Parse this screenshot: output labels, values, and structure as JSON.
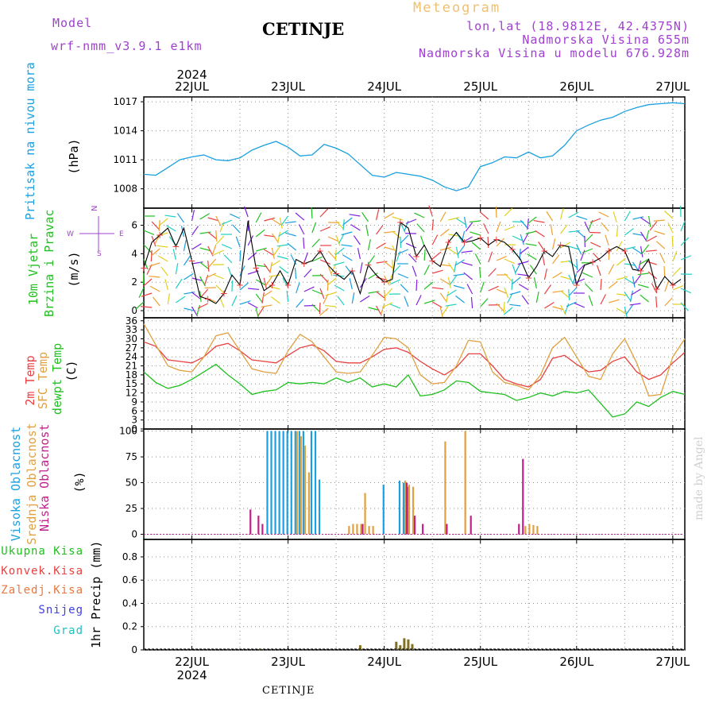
{
  "header": {
    "model_label": "Model",
    "model_value": "wrf-nmm_v3.9.1  e1km",
    "station": "CETINJE",
    "product": "Meteogram",
    "lonlat": "lon,lat (18.9812E, 42.4375N)",
    "altitude": "Nadmorska Visina 655m",
    "model_altitude": "Nadmorska Visina u modelu 676.928m"
  },
  "footer": {
    "station": "CETINJE"
  },
  "credit": "made by Angel",
  "colors": {
    "pressure": "#1aa0e0",
    "temp2m": "#e84040",
    "sfc": "#e0a040",
    "dewpt": "#20c020",
    "high_cloud": "#1aa0e0",
    "mid_cloud": "#e0a040",
    "low_cloud": "#c0208a",
    "wind_label": "#20c020",
    "purple": "#a040d0",
    "grid": "#909090"
  },
  "chart_data": [
    {
      "type": "line",
      "panel": "pressure",
      "ylabel_title": "Pritisak na nivou mora",
      "ylabel_unit": "(hPa)",
      "ylim": [
        1006,
        1017.5
      ],
      "yticks": [
        1008,
        1011,
        1014,
        1017
      ],
      "x_ticks": [
        "22JUL",
        "23JUL",
        "24JUL",
        "25JUL",
        "26JUL",
        "27JUL"
      ],
      "x_top_year": "2024",
      "xlim": [
        0,
        135
      ],
      "grid": true,
      "series": [
        {
          "color_key": "pressure",
          "x": [
            0,
            3,
            6,
            9,
            12,
            15,
            18,
            21,
            24,
            27,
            30,
            33,
            36,
            39,
            42,
            45,
            48,
            51,
            54,
            57,
            60,
            63,
            66,
            69,
            72,
            75,
            78,
            81,
            84,
            87,
            90,
            93,
            96,
            99,
            102,
            105,
            108,
            111,
            114,
            117,
            120,
            123,
            126,
            129,
            132,
            135
          ],
          "y": [
            1009.5,
            1009.4,
            1010.2,
            1011.0,
            1011.3,
            1011.5,
            1011.0,
            1010.9,
            1011.2,
            1012.0,
            1012.5,
            1012.9,
            1012.3,
            1011.4,
            1011.5,
            1012.6,
            1012.2,
            1011.6,
            1010.5,
            1009.4,
            1009.2,
            1009.7,
            1009.5,
            1009.3,
            1008.9,
            1008.2,
            1007.8,
            1008.2,
            1010.3,
            1010.7,
            1011.3,
            1011.2,
            1011.8,
            1011.2,
            1011.4,
            1012.5,
            1014.0,
            1014.6,
            1015.1,
            1015.4,
            1016.0,
            1016.4,
            1016.7,
            1016.8,
            1016.9,
            1016.8
          ]
        }
      ]
    },
    {
      "type": "line",
      "panel": "wind",
      "ylabel_title": "10m Vjetar",
      "ylabel_title2": "Brzina i Pravac",
      "ylabel_unit": "(m/s)",
      "compass": "N",
      "compass_w": "W",
      "compass_e": "E",
      "compass_s": "S",
      "ylim": [
        -0.5,
        7.2
      ],
      "yticks": [
        0,
        2,
        4,
        6
      ],
      "xlim": [
        0,
        135
      ],
      "grid": true,
      "series": [
        {
          "name": "speed",
          "x": [
            0,
            2,
            4,
            6,
            8,
            10,
            12,
            14,
            16,
            18,
            20,
            22,
            24,
            26,
            28,
            30,
            32,
            34,
            36,
            38,
            40,
            42,
            44,
            46,
            48,
            50,
            52,
            54,
            56,
            58,
            60,
            62,
            64,
            66,
            68,
            70,
            72,
            74,
            76,
            78,
            80,
            82,
            84,
            86,
            88,
            90,
            92,
            94,
            96,
            98,
            100,
            102,
            104,
            106,
            108,
            110,
            112,
            114,
            116,
            118,
            120,
            122,
            124,
            126,
            128,
            130,
            132,
            134
          ],
          "y": [
            3.0,
            4.8,
            5.3,
            5.8,
            4.5,
            5.8,
            3.5,
            1.0,
            0.8,
            0.5,
            1.2,
            2.5,
            1.8,
            6.3,
            3.0,
            1.4,
            1.8,
            2.8,
            1.8,
            3.6,
            3.3,
            3.5,
            4.2,
            3.2,
            2.6,
            2.2,
            2.8,
            1.2,
            3.2,
            2.5,
            2.0,
            2.2,
            6.2,
            5.8,
            3.8,
            4.6,
            3.5,
            3.1,
            4.8,
            5.5,
            4.8,
            4.9,
            5.1,
            4.6,
            5.0,
            4.8,
            4.3,
            3.6,
            2.3,
            3.1,
            4.2,
            3.8,
            4.6,
            4.5,
            1.8,
            3.2,
            3.4,
            3.7,
            4.2,
            4.5,
            4.2,
            2.9,
            2.8,
            3.6,
            1.5,
            2.4,
            1.8,
            2.2
          ]
        }
      ]
    },
    {
      "type": "line",
      "panel": "temperature",
      "ylabel_title_a": "2m Temp",
      "ylabel_title_b": "SFC Temp",
      "ylabel_title_c": "dewpt Temp",
      "ylabel_unit": "(C)",
      "ylim": [
        0,
        37
      ],
      "yticks": [
        0,
        3,
        6,
        9,
        12,
        15,
        18,
        21,
        24,
        27,
        30,
        33,
        36
      ],
      "xlim": [
        0,
        135
      ],
      "grid": true,
      "series": [
        {
          "color_key": "temp2m",
          "x": [
            0,
            3,
            6,
            9,
            12,
            15,
            18,
            21,
            24,
            27,
            30,
            33,
            36,
            39,
            42,
            45,
            48,
            51,
            54,
            57,
            60,
            63,
            66,
            69,
            72,
            75,
            78,
            81,
            84,
            87,
            90,
            93,
            96,
            99,
            102,
            105,
            108,
            111,
            114,
            117,
            120,
            123,
            126,
            129,
            132,
            135
          ],
          "y": [
            29.0,
            27.5,
            23.0,
            22.5,
            22.0,
            24.0,
            27.5,
            28.5,
            26.0,
            23.0,
            22.5,
            22.0,
            24.5,
            27.0,
            28.0,
            26.0,
            22.5,
            22.0,
            22.0,
            24.0,
            26.5,
            27.0,
            25.5,
            22.5,
            20.0,
            18.0,
            20.5,
            25.0,
            25.0,
            21.0,
            16.5,
            15.0,
            14.0,
            16.5,
            23.5,
            24.5,
            21.5,
            19.0,
            19.5,
            22.5,
            24.0,
            19.0,
            16.5,
            18.0,
            22.0,
            25.5
          ]
        },
        {
          "color_key": "sfc",
          "x": [
            0,
            3,
            6,
            9,
            12,
            15,
            18,
            21,
            24,
            27,
            30,
            33,
            36,
            39,
            42,
            45,
            48,
            51,
            54,
            57,
            60,
            63,
            66,
            69,
            72,
            75,
            78,
            81,
            84,
            87,
            90,
            93,
            96,
            99,
            102,
            105,
            108,
            111,
            114,
            117,
            120,
            123,
            126,
            129,
            132,
            135
          ],
          "y": [
            35.0,
            28.0,
            21.0,
            19.5,
            19.0,
            24.0,
            31.0,
            32.0,
            26.0,
            20.0,
            19.0,
            18.5,
            26.0,
            31.5,
            29.0,
            24.0,
            19.0,
            18.5,
            19.0,
            24.5,
            30.5,
            30.0,
            27.0,
            18.0,
            15.0,
            15.5,
            21.0,
            29.5,
            29.0,
            19.0,
            15.5,
            14.5,
            13.0,
            18.0,
            27.0,
            30.5,
            24.0,
            17.5,
            16.5,
            25.0,
            30.0,
            22.0,
            11.0,
            11.5,
            24.0,
            30.0
          ]
        },
        {
          "color_key": "dewpt",
          "x": [
            0,
            3,
            6,
            9,
            12,
            15,
            18,
            21,
            24,
            27,
            30,
            33,
            36,
            39,
            42,
            45,
            48,
            51,
            54,
            57,
            60,
            63,
            66,
            69,
            72,
            75,
            78,
            81,
            84,
            87,
            90,
            93,
            96,
            99,
            102,
            105,
            108,
            111,
            114,
            117,
            120,
            123,
            126,
            129,
            132,
            135
          ],
          "y": [
            19.0,
            15.5,
            13.5,
            14.5,
            16.5,
            19.0,
            21.5,
            18.0,
            15.0,
            11.5,
            12.5,
            13.0,
            15.5,
            15.0,
            15.5,
            15.0,
            17.0,
            15.5,
            17.0,
            14.0,
            15.0,
            14.0,
            18.0,
            11.0,
            11.5,
            13.0,
            16.0,
            15.5,
            12.5,
            12.0,
            11.5,
            9.5,
            10.5,
            12.0,
            11.0,
            12.5,
            12.0,
            13.0,
            8.5,
            4.0,
            5.0,
            9.0,
            7.5,
            10.5,
            12.5,
            11.5
          ]
        }
      ]
    },
    {
      "type": "bar",
      "panel": "cloud",
      "ylabel_a": "Visoka Oblacnost",
      "ylabel_b": "Srednja Oblacnost",
      "ylabel_c": "Niska Oblacnost",
      "ylabel_unit": "(%)",
      "ylim": [
        -5,
        102
      ],
      "yticks": [
        0,
        25,
        50,
        75,
        100
      ],
      "xlim": [
        0,
        135
      ],
      "grid": true,
      "series": [
        {
          "color_key": "high_cloud",
          "x": [
            31,
            32,
            33,
            34,
            35,
            36,
            37,
            38,
            39,
            40,
            42,
            43,
            44,
            60,
            64,
            65,
            66
          ],
          "values": [
            100,
            100,
            100,
            100,
            100,
            100,
            100,
            100,
            100,
            100,
            100,
            100,
            53,
            48,
            52,
            50,
            46
          ]
        },
        {
          "color_key": "mid_cloud",
          "x": [
            38,
            39,
            40,
            41,
            51,
            52,
            53,
            54,
            55,
            56,
            57,
            65,
            66,
            67,
            75,
            80,
            95,
            96,
            97,
            98
          ],
          "values": [
            100,
            95,
            86,
            60,
            8,
            10,
            10,
            10,
            40,
            8,
            8,
            52,
            48,
            46,
            90,
            100,
            8,
            10,
            9,
            8
          ]
        },
        {
          "color_key": "low_cloud",
          "x": [
            26,
            28,
            29,
            54,
            65,
            67,
            69,
            75,
            81,
            93,
            94
          ],
          "values": [
            24,
            18,
            10,
            10,
            50,
            18,
            10,
            10,
            18,
            10,
            73
          ]
        }
      ]
    },
    {
      "type": "bar",
      "panel": "precip",
      "ylabel_unit": "1hr Precip (mm)",
      "legend": [
        "Ukupna Kisa",
        "Konvek.Kisa",
        "Zaledj.Kisa",
        "Snijeg",
        "Grad"
      ],
      "legend_colors": [
        "#20c020",
        "#e84040",
        "#e87840",
        "#4040e0",
        "#20c0c0"
      ],
      "ylim": [
        0,
        0.95
      ],
      "yticks": [
        0,
        0.2,
        0.4,
        0.6,
        0.8
      ],
      "ytick_labels": [
        "0",
        "0.2",
        "0.4",
        "0.6",
        "0.8"
      ],
      "x_ticks": [
        "22JUL",
        "23JUL",
        "24JUL",
        "25JUL",
        "26JUL",
        "27JUL"
      ],
      "x_bottom_year": "2024",
      "xlim": [
        0,
        135
      ],
      "grid": true,
      "series": [
        {
          "name": "Ukupna Kisa",
          "x": [
            21,
            29,
            54,
            63,
            64,
            65,
            66,
            67
          ],
          "values": [
            0.01,
            0.01,
            0.04,
            0.07,
            0.04,
            0.1,
            0.09,
            0.05
          ]
        }
      ]
    }
  ]
}
